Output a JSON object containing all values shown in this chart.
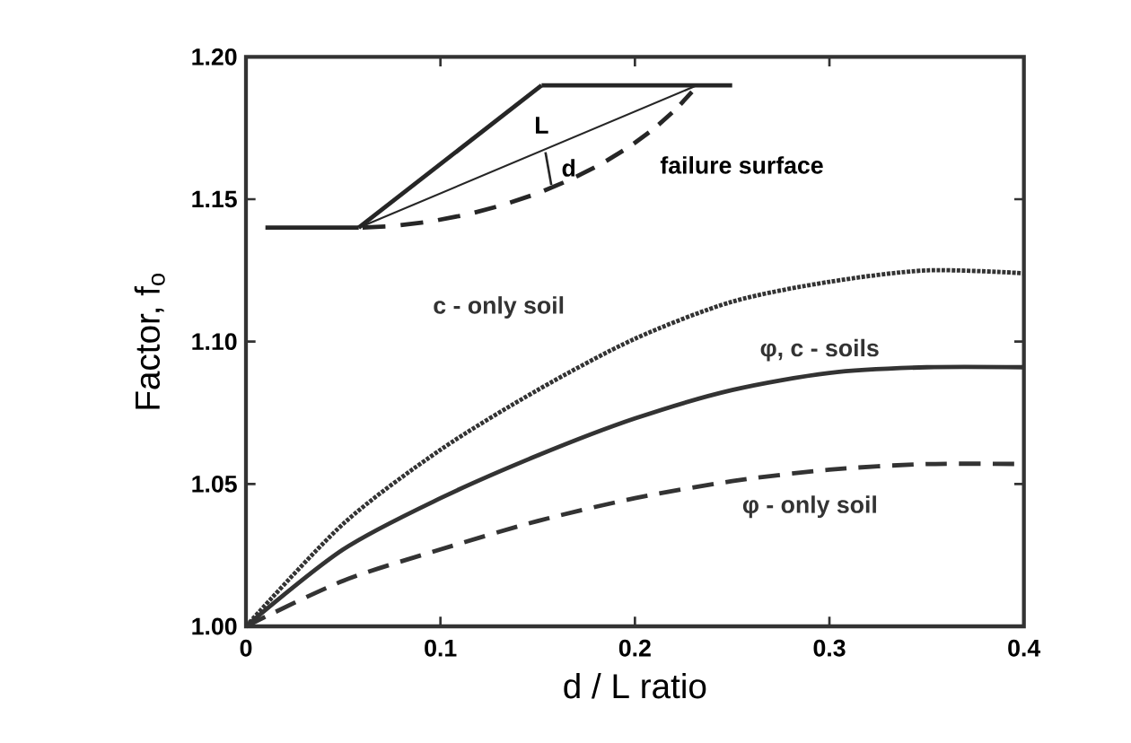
{
  "chart_data": {
    "type": "line",
    "xlabel": "d / L ratio",
    "ylabel": "Factor, f$_{o}$",
    "x": [
      0,
      0.05,
      0.1,
      0.15,
      0.2,
      0.25,
      0.3,
      0.35,
      0.4
    ],
    "series": [
      {
        "name": "c - only soil",
        "color": "#333333",
        "line_style": "dotted",
        "values": [
          1.0,
          1.036,
          1.062,
          1.083,
          1.101,
          1.114,
          1.121,
          1.125,
          1.124
        ]
      },
      {
        "name": "φ, c - soils",
        "color": "#333333",
        "line_style": "solid",
        "values": [
          1.0,
          1.027,
          1.045,
          1.06,
          1.073,
          1.083,
          1.089,
          1.091,
          1.091
        ]
      },
      {
        "name": "φ - only soil",
        "color": "#333333",
        "line_style": "dashed",
        "values": [
          1.0,
          1.016,
          1.027,
          1.037,
          1.045,
          1.051,
          1.055,
          1.057,
          1.057
        ]
      }
    ],
    "xlim": [
      0,
      0.4
    ],
    "ylim": [
      1.0,
      1.2
    ],
    "xticks": [
      0,
      0.1,
      0.2,
      0.3,
      0.4
    ],
    "yticks": [
      {
        "value": 1.0,
        "label": "1.00"
      },
      {
        "value": 1.05,
        "label": "1.05"
      },
      {
        "value": 1.1,
        "label": "1.10"
      },
      {
        "value": 1.15,
        "label": "1.15"
      },
      {
        "value": 1.2,
        "label": "1.20"
      }
    ],
    "grid": false,
    "legend": false,
    "marker": "none",
    "annotations": [
      "L",
      "d",
      "failure surface"
    ]
  }
}
